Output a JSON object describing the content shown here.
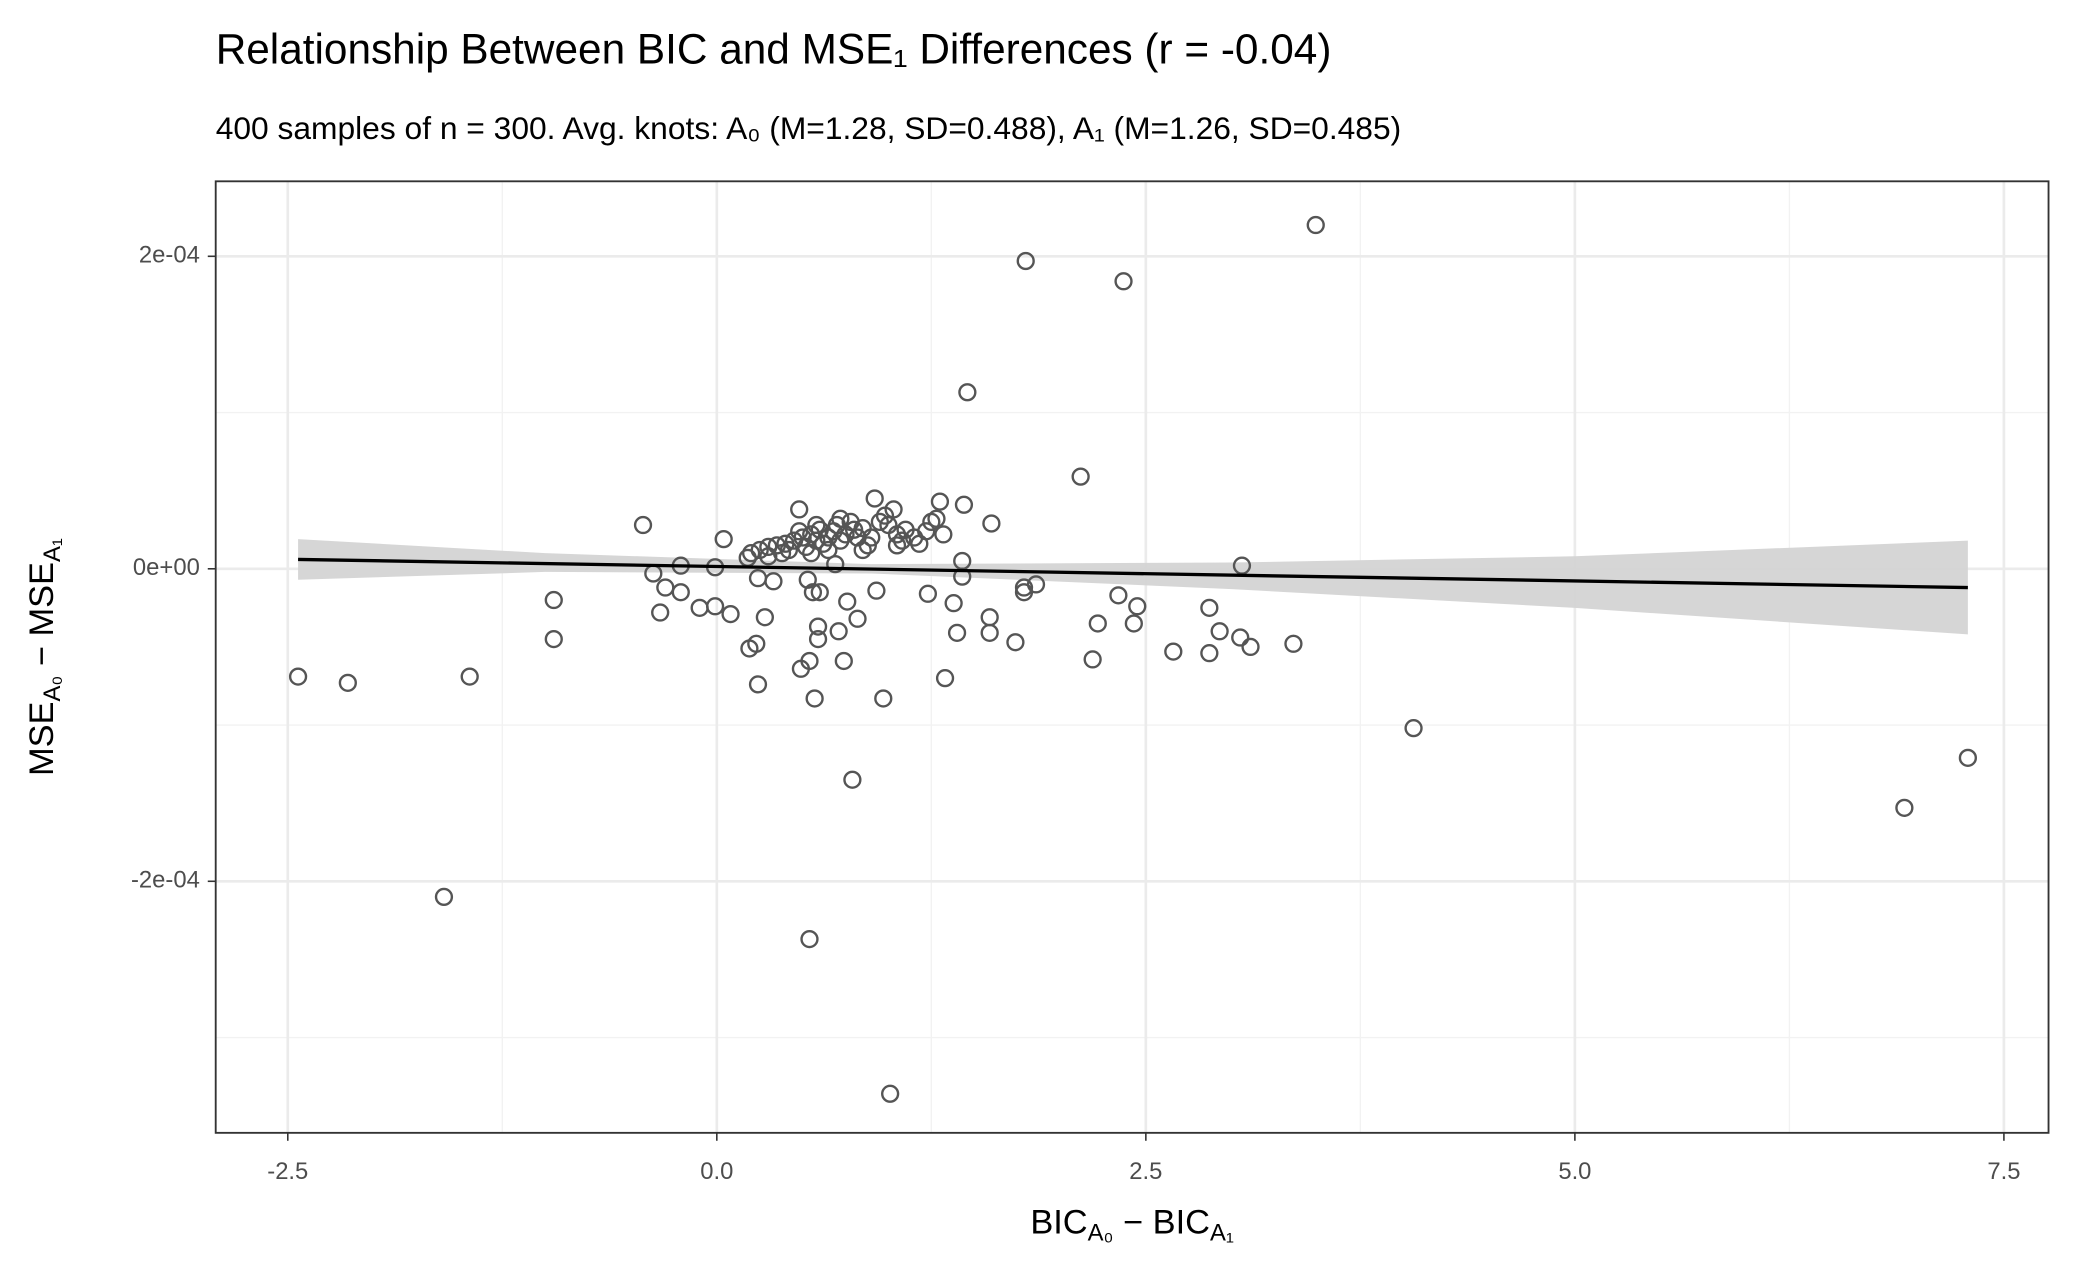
{
  "chart_data": {
    "type": "scatter",
    "title": "Relationship Between BIC and MSE₁ Differences (r = -0.04)",
    "subtitle": "400 samples of n = 300. Avg. knots:  A₀ (M=1.28, SD=0.488), A₁ (M=1.26, SD=0.485)",
    "x_label": [
      {
        "text": "BIC"
      },
      {
        "text": "A₀",
        "sub": true
      },
      {
        "text": " − BIC"
      },
      {
        "text": "A₁",
        "sub": true
      }
    ],
    "y_label": [
      {
        "text": "MSE"
      },
      {
        "text": "A₀",
        "sub": true
      },
      {
        "text": " − MSE"
      },
      {
        "text": "A₁",
        "sub": true
      }
    ],
    "xlim": [
      -2.92,
      7.76
    ],
    "ylim": [
      -0.000361,
      0.000248
    ],
    "xticks": [
      -2.5,
      {
        "value": 0,
        "label": "0.0"
      },
      2.5,
      {
        "value": 5,
        "label": "5.0"
      },
      7.5
    ],
    "yticks": [
      {
        "value": -0.0002,
        "label": "-2e-04"
      },
      {
        "value": 0,
        "label": "0e+00"
      },
      {
        "value": 0.0002,
        "label": "2e-04"
      }
    ],
    "xminor": [
      -1.25,
      1.25,
      3.75,
      6.25
    ],
    "yminor": [
      -0.0003,
      -0.0001,
      0.0001
    ],
    "grid": true,
    "point_color": "#555555",
    "x": [
      3.49,
      1.8,
      2.37,
      1.46,
      2.12,
      -0.43,
      0.04,
      -2.44,
      -2.15,
      -1.44,
      -0.95,
      -0.95,
      -1.59,
      -0.37,
      -0.3,
      -0.33,
      -0.21,
      -0.21,
      -0.1,
      -0.01,
      -0.01,
      0.08,
      0.18,
      0.19,
      0.23,
      0.24,
      0.24,
      0.28,
      0.33,
      0.49,
      0.54,
      0.53,
      0.56,
      0.57,
      0.59,
      0.59,
      0.6,
      0.54,
      0.79,
      0.74,
      0.71,
      0.76,
      0.82,
      0.69,
      0.93,
      0.97,
      1.01,
      1.23,
      1.33,
      1.38,
      1.4,
      1.43,
      1.43,
      1.59,
      1.59,
      1.74,
      1.79,
      1.79,
      1.86,
      2.19,
      2.22,
      2.34,
      2.43,
      2.45,
      2.66,
      2.87,
      2.87,
      2.93,
      3.05,
      3.11,
      3.06,
      3.36,
      4.06,
      6.92,
      7.29,
      1.6,
      1.44,
      1.3,
      0.92,
      0.48,
      1.03,
      0.2,
      0.25,
      0.3,
      0.35,
      0.4,
      0.45,
      0.5,
      0.52,
      0.55,
      0.58,
      0.6,
      0.62,
      0.65,
      0.68,
      0.7,
      0.72,
      0.75,
      0.78,
      0.8,
      0.82,
      0.85,
      0.88,
      0.9,
      0.95,
      0.98,
      1.0,
      1.05,
      1.08,
      1.1,
      1.15,
      1.18,
      1.22,
      1.25,
      1.28,
      1.32,
      0.42,
      0.38,
      0.55,
      0.65,
      0.48,
      0.58,
      0.72,
      0.85,
      1.05,
      0.3
    ],
    "values": [
      0.00022,
      0.000197,
      0.000184,
      0.000113,
      5.9e-05,
      2.8e-05,
      1.9e-05,
      -6.9e-05,
      -7.3e-05,
      -6.9e-05,
      -2e-05,
      -4.5e-05,
      -0.00021,
      -3e-06,
      -1.2e-05,
      -2.8e-05,
      2e-06,
      -1.5e-05,
      -2.5e-05,
      1e-06,
      -2.4e-05,
      -2.9e-05,
      7e-06,
      -5.1e-05,
      -4.8e-05,
      -7.4e-05,
      -6e-06,
      -3.1e-05,
      -8e-06,
      -6.4e-05,
      -5.9e-05,
      -7e-06,
      -1.5e-05,
      -8.3e-05,
      -3.7e-05,
      -4.5e-05,
      -1.5e-05,
      -0.000237,
      -0.000135,
      -5.9e-05,
      -4e-05,
      -2.1e-05,
      -3.2e-05,
      3e-06,
      -1.4e-05,
      -8.3e-05,
      -0.000336,
      -1.6e-05,
      -7e-05,
      -2.2e-05,
      -4.1e-05,
      -5e-06,
      5e-06,
      -3.1e-05,
      -4.1e-05,
      -4.7e-05,
      -1.2e-05,
      -1.5e-05,
      -1e-05,
      -5.8e-05,
      -3.5e-05,
      -1.7e-05,
      -3.5e-05,
      -2.4e-05,
      -5.3e-05,
      -2.5e-05,
      -5.4e-05,
      -4e-05,
      -4.4e-05,
      -5e-05,
      2e-06,
      -4.8e-05,
      -0.000102,
      -0.000153,
      -0.000121,
      2.9e-05,
      4.1e-05,
      4.3e-05,
      4.5e-05,
      3.8e-05,
      3.8e-05,
      1e-05,
      1.2e-05,
      1.4e-05,
      1.5e-05,
      1.6e-05,
      1.8e-05,
      2e-05,
      1.4e-05,
      2.2e-05,
      1.8e-05,
      2.5e-05,
      1.6e-05,
      2e-05,
      2.4e-05,
      2.8e-05,
      1.8e-05,
      2.2e-05,
      3e-05,
      2.5e-05,
      2e-05,
      2.6e-05,
      1.5e-05,
      2e-05,
      3e-05,
      3.4e-05,
      2.8e-05,
      2.2e-05,
      1.8e-05,
      2.5e-05,
      2e-05,
      1.6e-05,
      2.4e-05,
      3e-05,
      3.2e-05,
      2.2e-05,
      1.2e-05,
      1e-05,
      1e-05,
      1.2e-05,
      2.4e-05,
      2.8e-05,
      3.2e-05,
      1.2e-05,
      1.5e-05,
      8e-06
    ],
    "trend": {
      "color": "#000000",
      "x": [
        -2.44,
        7.29
      ],
      "values": [
        6e-06,
        -1.2e-05
      ]
    },
    "band": {
      "color": "#d4d4d4",
      "x": [
        -2.44,
        -1,
        0.9,
        3,
        5,
        7.29
      ],
      "lower": [
        -7e-06,
        -2e-06,
        -3e-06,
        -1.3e-05,
        -2.5e-05,
        -4.2e-05
      ],
      "upper": [
        1.9e-05,
        1e-05,
        3e-06,
        4e-06,
        8e-06,
        1.8e-05
      ]
    }
  }
}
